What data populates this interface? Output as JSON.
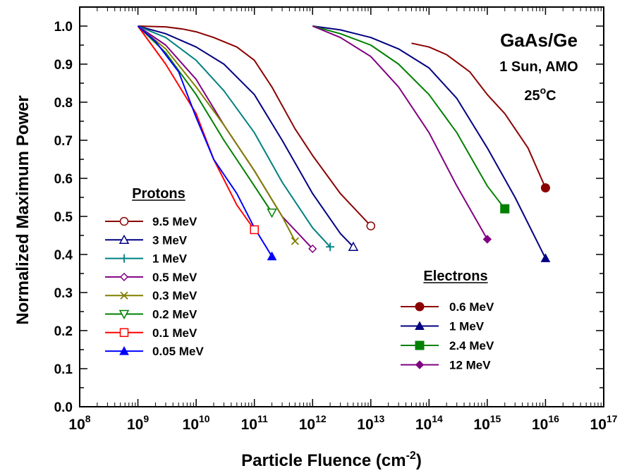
{
  "chart_data": {
    "type": "line",
    "xlabel": "Particle Fluence (cm",
    "xlabel_sup": "-2",
    "xlabel_end": ")",
    "ylabel": "Normalized Maximum Power",
    "xscale": "log",
    "xlim": [
      100000000.0,
      1e+17
    ],
    "ylim": [
      0.0,
      1.05
    ],
    "x_ticks": [
      {
        "base": "10",
        "exp": "8"
      },
      {
        "base": "10",
        "exp": "9"
      },
      {
        "base": "10",
        "exp": "10"
      },
      {
        "base": "10",
        "exp": "11"
      },
      {
        "base": "10",
        "exp": "12"
      },
      {
        "base": "10",
        "exp": "13"
      },
      {
        "base": "10",
        "exp": "14"
      },
      {
        "base": "10",
        "exp": "15"
      },
      {
        "base": "10",
        "exp": "16"
      },
      {
        "base": "10",
        "exp": "17"
      }
    ],
    "y_ticks": [
      "0.0",
      "0.1",
      "0.2",
      "0.3",
      "0.4",
      "0.5",
      "0.6",
      "0.7",
      "0.8",
      "0.9",
      "1.0"
    ],
    "annotation": {
      "line1": "GaAs/Ge",
      "line2": "1 Sun, AMO",
      "line3_base": "25",
      "line3_sup": "o",
      "line3_end": "C"
    },
    "legends": [
      {
        "title": "Protons",
        "entries": [
          "9.5 MeV",
          "3 MeV",
          "1 MeV",
          "0.5 MeV",
          "0.3 MeV",
          "0.2 MeV",
          "0.1 MeV",
          "0.05 MeV"
        ]
      },
      {
        "title": "Electrons",
        "entries": [
          "0.6 MeV",
          "1 MeV",
          "2.4 MeV",
          "12 MeV"
        ]
      }
    ],
    "series": [
      {
        "name": "9.5 MeV",
        "group": "Protons",
        "color": "#8b0000",
        "marker": "circle-open",
        "x": [
          1000000000.0,
          3000000000.0,
          6000000000.0,
          10000000000.0,
          20000000000.0,
          50000000000.0,
          100000000000.0,
          200000000000.0,
          500000000000.0,
          1000000000000.0,
          3000000000000.0,
          10000000000000.0
        ],
        "y": [
          1.0,
          0.998,
          0.992,
          0.985,
          0.97,
          0.945,
          0.91,
          0.84,
          0.73,
          0.66,
          0.56,
          0.475
        ]
      },
      {
        "name": "3 MeV",
        "group": "Protons",
        "color": "#000080",
        "marker": "triangle-open",
        "x": [
          1000000000.0,
          3000000000.0,
          10000000000.0,
          30000000000.0,
          100000000000.0,
          300000000000.0,
          1000000000000.0,
          3000000000000.0,
          5000000000000.0
        ],
        "y": [
          1.0,
          0.98,
          0.945,
          0.9,
          0.82,
          0.7,
          0.56,
          0.455,
          0.42
        ]
      },
      {
        "name": "1 MeV",
        "group": "Protons",
        "color": "#008080",
        "marker": "plus",
        "x": [
          1000000000.0,
          3000000000.0,
          10000000000.0,
          30000000000.0,
          100000000000.0,
          300000000000.0,
          1000000000000.0,
          2000000000000.0
        ],
        "y": [
          1.0,
          0.97,
          0.91,
          0.83,
          0.72,
          0.59,
          0.47,
          0.42
        ]
      },
      {
        "name": "0.5 MeV",
        "group": "Protons",
        "color": "#800080",
        "marker": "diamond-open",
        "x": [
          1000000000.0,
          3000000000.0,
          10000000000.0,
          30000000000.0,
          100000000000.0,
          300000000000.0,
          1000000000000.0
        ],
        "y": [
          1.0,
          0.95,
          0.86,
          0.74,
          0.62,
          0.5,
          0.415
        ]
      },
      {
        "name": "0.3 MeV",
        "group": "Protons",
        "color": "#808000",
        "marker": "x",
        "x": [
          1000000000.0,
          3000000000.0,
          10000000000.0,
          30000000000.0,
          100000000000.0,
          300000000000.0,
          500000000000.0
        ],
        "y": [
          1.0,
          0.94,
          0.84,
          0.74,
          0.62,
          0.5,
          0.435
        ]
      },
      {
        "name": "0.2 MeV",
        "group": "Protons",
        "color": "#008000",
        "marker": "triangle-down-open",
        "x": [
          1000000000.0,
          3000000000.0,
          10000000000.0,
          30000000000.0,
          100000000000.0,
          200000000000.0
        ],
        "y": [
          1.0,
          0.93,
          0.82,
          0.7,
          0.58,
          0.51
        ]
      },
      {
        "name": "0.1 MeV",
        "group": "Protons",
        "color": "#ff0000",
        "marker": "square-open",
        "x": [
          1000000000.0,
          3000000000.0,
          10000000000.0,
          20000000000.0,
          50000000000.0,
          100000000000.0
        ],
        "y": [
          1.0,
          0.9,
          0.77,
          0.65,
          0.53,
          0.465
        ]
      },
      {
        "name": "0.05 MeV",
        "group": "Protons",
        "color": "#0000ff",
        "marker": "triangle-filled",
        "x": [
          1000000000.0,
          2000000000.0,
          5000000000.0,
          10000000000.0,
          20000000000.0,
          50000000000.0,
          100000000000.0,
          200000000000.0
        ],
        "y": [
          1.0,
          0.96,
          0.88,
          0.76,
          0.65,
          0.56,
          0.47,
          0.395
        ]
      },
      {
        "name": "0.6 MeV",
        "group": "Electrons",
        "color": "#8b0000",
        "marker": "circle-filled",
        "x": [
          50000000000000.0,
          100000000000000.0,
          200000000000000.0,
          500000000000000.0,
          1000000000000000.0,
          2000000000000000.0,
          5000000000000000.0,
          1e+16
        ],
        "y": [
          0.955,
          0.945,
          0.925,
          0.88,
          0.82,
          0.77,
          0.68,
          0.575
        ]
      },
      {
        "name": "1 MeV",
        "group": "Electrons",
        "color": "#000080",
        "marker": "triangle-filled",
        "x": [
          1000000000000.0,
          3000000000000.0,
          10000000000000.0,
          30000000000000.0,
          100000000000000.0,
          300000000000000.0,
          1000000000000000.0,
          3000000000000000.0,
          1e+16
        ],
        "y": [
          1.0,
          0.99,
          0.97,
          0.94,
          0.89,
          0.81,
          0.68,
          0.55,
          0.39
        ]
      },
      {
        "name": "2.4 MeV",
        "group": "Electrons",
        "color": "#008000",
        "marker": "square-filled",
        "x": [
          1000000000000.0,
          3000000000000.0,
          10000000000000.0,
          30000000000000.0,
          100000000000000.0,
          300000000000000.0,
          1000000000000000.0,
          2000000000000000.0
        ],
        "y": [
          1.0,
          0.98,
          0.95,
          0.9,
          0.82,
          0.72,
          0.58,
          0.52
        ]
      },
      {
        "name": "12 MeV",
        "group": "Electrons",
        "color": "#800080",
        "marker": "diamond-filled",
        "x": [
          1000000000000.0,
          3000000000000.0,
          10000000000000.0,
          30000000000000.0,
          100000000000000.0,
          300000000000000.0,
          1000000000000000.0
        ],
        "y": [
          1.0,
          0.97,
          0.92,
          0.84,
          0.72,
          0.58,
          0.44
        ]
      }
    ]
  }
}
